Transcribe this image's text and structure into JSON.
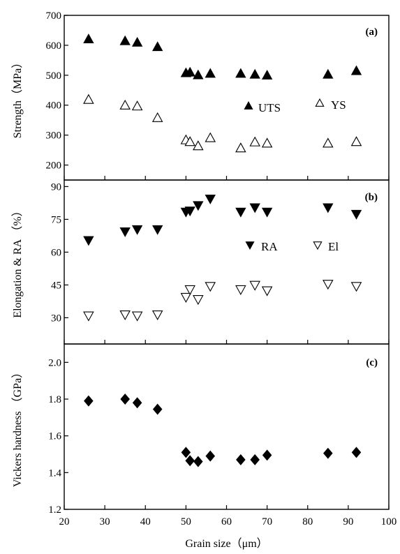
{
  "chart_data": [
    {
      "type": "scatter",
      "panel_label": "(a)",
      "xlabel": "Grain size（μm）",
      "ylabel": "Strength（MPa）",
      "xlim": [
        20,
        100
      ],
      "ylim": [
        150,
        700
      ],
      "xticks": [
        20,
        30,
        40,
        50,
        60,
        70,
        80,
        90,
        100
      ],
      "yticks": [
        200,
        300,
        400,
        500,
        600,
        700
      ],
      "grid": false,
      "legend_position": "middle-right",
      "series": [
        {
          "name": "UTS",
          "marker": "triangle-up-filled",
          "x": [
            26,
            35,
            38,
            43,
            50,
            51,
            53,
            56,
            63.5,
            67,
            70,
            85,
            92
          ],
          "y": [
            620,
            614,
            609,
            594,
            507,
            509,
            500,
            505,
            505,
            502,
            499,
            502,
            514
          ]
        },
        {
          "name": "YS",
          "marker": "triangle-up-open",
          "x": [
            26,
            35,
            38,
            43,
            50,
            51,
            53,
            56,
            63.5,
            67,
            70,
            85,
            92
          ],
          "y": [
            418,
            399,
            396,
            357,
            283,
            277,
            263,
            290,
            256,
            276,
            272,
            272,
            277
          ]
        }
      ]
    },
    {
      "type": "scatter",
      "panel_label": "(b)",
      "xlabel": "Grain size（μm）",
      "ylabel": "Elongation & RA （%）",
      "xlim": [
        20,
        100
      ],
      "ylim": [
        18,
        93
      ],
      "xticks": [
        20,
        30,
        40,
        50,
        60,
        70,
        80,
        90,
        100
      ],
      "yticks": [
        30,
        45,
        60,
        75,
        90
      ],
      "grid": false,
      "legend_position": "middle-right",
      "series": [
        {
          "name": "RA",
          "marker": "triangle-down-filled",
          "x": [
            26,
            35,
            38,
            43,
            50,
            51,
            53,
            56,
            63.5,
            67,
            70,
            85,
            92
          ],
          "y": [
            65.5,
            69.5,
            70.5,
            70.5,
            78.5,
            79,
            81.5,
            84.5,
            78.5,
            80.5,
            78.5,
            80.5,
            77.5
          ]
        },
        {
          "name": "El",
          "marker": "triangle-down-open",
          "x": [
            26,
            35,
            38,
            43,
            50,
            51,
            53,
            56,
            63.5,
            67,
            70,
            85,
            92
          ],
          "y": [
            31,
            31.5,
            31,
            31.5,
            39.5,
            43,
            38.5,
            44.5,
            43,
            45,
            42.5,
            45.5,
            44.5
          ]
        }
      ]
    },
    {
      "type": "scatter",
      "panel_label": "(c)",
      "xlabel": "Grain size（μm）",
      "ylabel": "Vickers hardness （GPa）",
      "xlim": [
        20,
        100
      ],
      "ylim": [
        1.2,
        2.1
      ],
      "xticks": [
        20,
        30,
        40,
        50,
        60,
        70,
        80,
        90,
        100
      ],
      "yticks": [
        1.2,
        1.4,
        1.6,
        1.8,
        2.0
      ],
      "grid": false,
      "series": [
        {
          "name": "",
          "marker": "diamond-filled",
          "x": [
            26,
            35,
            38,
            43,
            50,
            51,
            53,
            56,
            63.5,
            67,
            70,
            85,
            92
          ],
          "y": [
            1.79,
            1.8,
            1.78,
            1.745,
            1.51,
            1.465,
            1.46,
            1.49,
            1.47,
            1.47,
            1.495,
            1.505,
            1.51
          ]
        }
      ]
    }
  ],
  "colors": {
    "marker": "#000000",
    "axis": "#000000",
    "background": "#ffffff"
  }
}
